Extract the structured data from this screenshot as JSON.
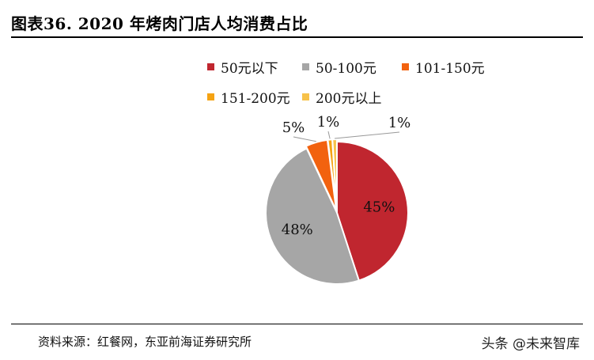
{
  "header": {
    "title": "图表36.  2020 年烤肉门店人均消费占比"
  },
  "footer": {
    "source": "资料来源：红餐网，东亚前海证券研究所"
  },
  "watermark": {
    "text": "头条 @未来智库"
  },
  "chart_data": {
    "type": "pie",
    "legend_placement": "top",
    "slices": [
      {
        "name": "50元以下",
        "value": 45,
        "label": "45%",
        "color": "#c0262f"
      },
      {
        "name": "50-100元",
        "value": 48,
        "label": "48%",
        "color": "#a6a6a6"
      },
      {
        "name": "101-150元",
        "value": 5,
        "label": "5%",
        "color": "#f2620f"
      },
      {
        "name": "151-200元",
        "value": 1,
        "label": "1%",
        "color": "#f5a313"
      },
      {
        "name": "200元以上",
        "value": 1,
        "label": "1%",
        "color": "#f7c24a"
      }
    ]
  }
}
